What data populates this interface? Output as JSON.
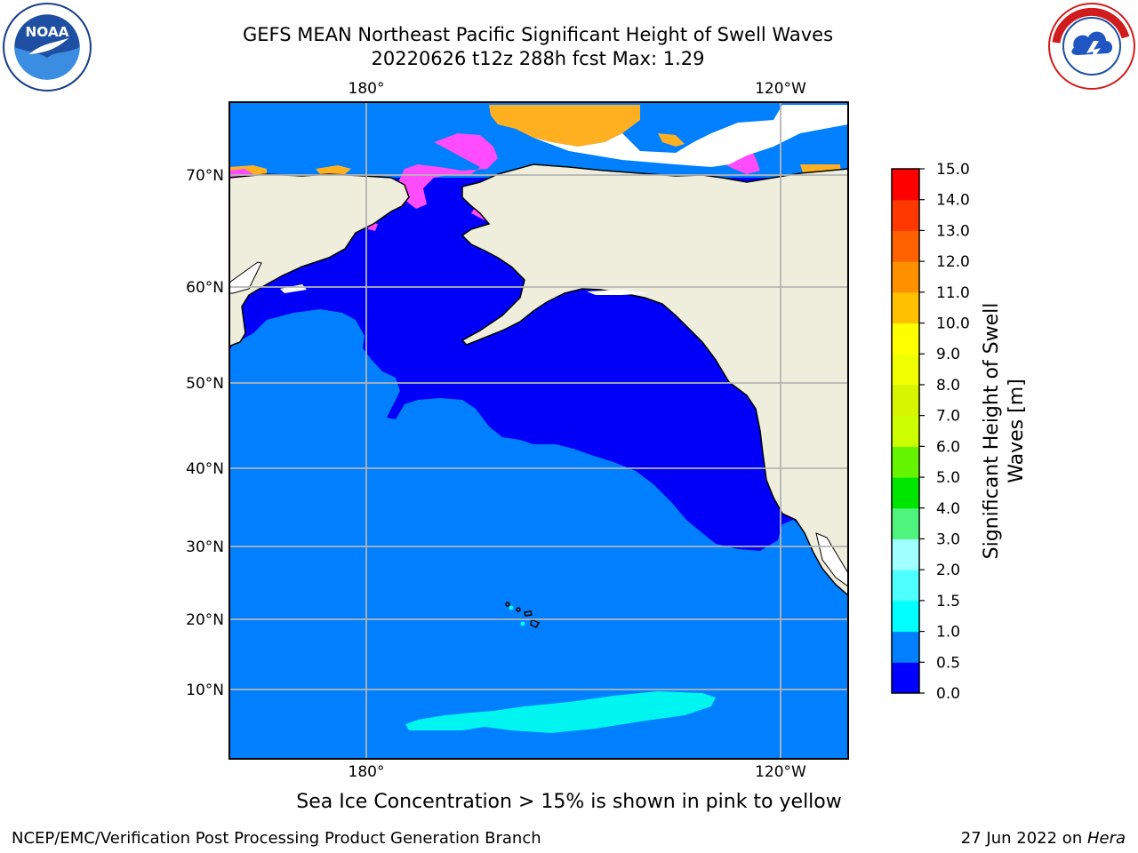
{
  "title": {
    "line1": "GEFS MEAN Northeast Pacific Significant Height of Swell Waves",
    "line2": "20220626 t12z 288h fcst   Max: 1.29"
  },
  "logos": {
    "left": {
      "icon": "noaa-logo",
      "text": "NOAA",
      "ring_text": "NATIONAL OCEANIC AND ATMOSPHERIC ADMINISTRATION · U.S. DEPARTMENT OF COMMERCE"
    },
    "right": {
      "icon": "national-weather-service-logo",
      "ring_text": "NATIONAL WEATHER SERVICE"
    }
  },
  "map": {
    "region": "Northeast Pacific",
    "top_lon_labels": [
      "180°",
      "120°W"
    ],
    "bottom_lon_labels": [
      "180°",
      "120°W"
    ],
    "lat_labels": [
      "70°N",
      "60°N",
      "50°N",
      "40°N",
      "30°N",
      "20°N",
      "10°N"
    ],
    "colors": {
      "land": "#efeedc",
      "ocean_0_0.5": "#0000f8",
      "ocean_0.5_1.0": "#0080ff",
      "ocean_1.0_1.5": "#00ffff",
      "ice_low": "#ff4cff",
      "ice_high": "#ffb000",
      "grid": "#b4b4b4"
    }
  },
  "colorbar": {
    "label_line1": "Significant Height of Swell",
    "label_line2": "Waves [m]",
    "ticks": [
      "15.0",
      "14.0",
      "13.0",
      "12.0",
      "11.0",
      "10.0",
      "9.0",
      "8.0",
      "7.0",
      "6.0",
      "5.0",
      "4.0",
      "3.0",
      "2.0",
      "1.5",
      "1.0",
      "0.5",
      "0.0"
    ],
    "bins": [
      {
        "from": 0.0,
        "to": 0.5,
        "color": "#0000ff"
      },
      {
        "from": 0.5,
        "to": 1.0,
        "color": "#0080ff"
      },
      {
        "from": 1.0,
        "to": 1.5,
        "color": "#00ffff"
      },
      {
        "from": 1.5,
        "to": 2.0,
        "color": "#4dffff"
      },
      {
        "from": 2.0,
        "to": 3.0,
        "color": "#a0ffff"
      },
      {
        "from": 3.0,
        "to": 4.0,
        "color": "#4ff47c"
      },
      {
        "from": 4.0,
        "to": 5.0,
        "color": "#00e600"
      },
      {
        "from": 5.0,
        "to": 6.0,
        "color": "#66f500"
      },
      {
        "from": 6.0,
        "to": 7.0,
        "color": "#ccff00"
      },
      {
        "from": 7.0,
        "to": 8.0,
        "color": "#d8f500"
      },
      {
        "from": 8.0,
        "to": 9.0,
        "color": "#f0ff00"
      },
      {
        "from": 9.0,
        "to": 10.0,
        "color": "#ffff00"
      },
      {
        "from": 10.0,
        "to": 11.0,
        "color": "#ffc000"
      },
      {
        "from": 11.0,
        "to": 12.0,
        "color": "#ff9000"
      },
      {
        "from": 12.0,
        "to": 13.0,
        "color": "#ff6000"
      },
      {
        "from": 13.0,
        "to": 14.0,
        "color": "#ff3800"
      },
      {
        "from": 14.0,
        "to": 15.0,
        "color": "#ff0000"
      }
    ]
  },
  "caption": "Sea Ice Concentration > 15% is shown in pink to yellow",
  "footer": {
    "left": "NCEP/EMC/Verification Post Processing Product Generation Branch",
    "right_date": "27 Jun 2022 on ",
    "right_machine": "Hera"
  }
}
